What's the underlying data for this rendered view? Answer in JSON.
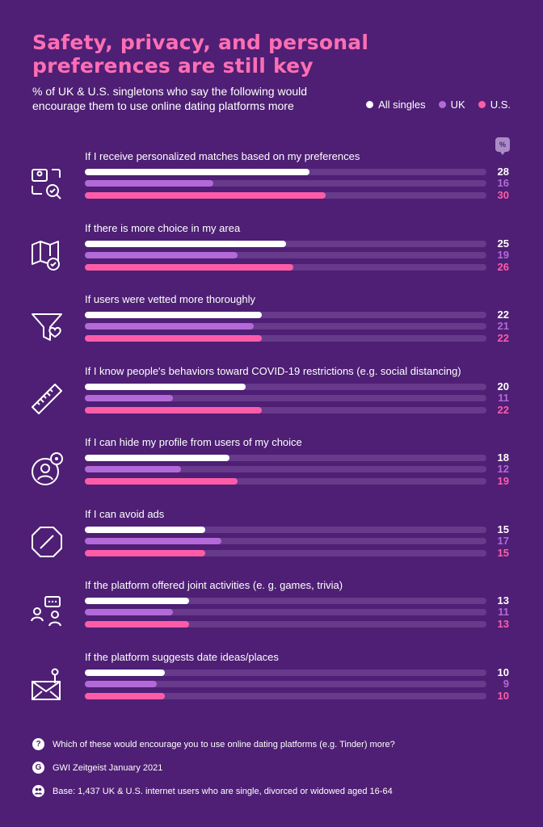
{
  "header": {
    "title": "Safety, privacy, and personal preferences are still key",
    "subtitle": "% of UK & U.S. singletons who say the following would encourage them to use online dating platforms more",
    "unit_badge": "%"
  },
  "colors": {
    "background": "#4e1f74",
    "track": "#673a8c",
    "all_singles": "#ffffff",
    "uk": "#b36ad8",
    "us": "#ff5ca8",
    "title": "#ff6eb4"
  },
  "chart_data": {
    "type": "bar",
    "orientation": "horizontal",
    "xlim": [
      0,
      50
    ],
    "legend_position": "top-right",
    "series": [
      {
        "name": "All singles",
        "color": "#ffffff",
        "values": [
          28,
          25,
          22,
          20,
          18,
          15,
          13,
          10
        ]
      },
      {
        "name": "UK",
        "color": "#b36ad8",
        "values": [
          16,
          19,
          21,
          11,
          12,
          17,
          11,
          9
        ]
      },
      {
        "name": "U.S.",
        "color": "#ff5ca8",
        "values": [
          30,
          26,
          22,
          22,
          19,
          15,
          13,
          10
        ]
      }
    ],
    "categories": [
      "If I receive personalized matches based on my preferences",
      "If there is more choice in my area",
      "If users were vetted more thoroughly",
      "If I know people's behaviors toward COVID-19 restrictions (e.g. social distancing)",
      "If I can hide my profile from users of my choice",
      "If I can avoid ads",
      "If the platform offered joint activities (e. g. games, trivia)",
      "If the platform suggests date ideas/places"
    ],
    "icons": [
      "profile-search-icon",
      "map-check-icon",
      "filter-heart-icon",
      "ruler-icon",
      "profile-eye-icon",
      "no-ads-icon",
      "group-chat-icon",
      "mail-pin-icon"
    ]
  },
  "footer": {
    "question": "Which of these would encourage you to use online dating platforms (e.g. Tinder) more?",
    "source": "GWI Zeitgeist January 2021",
    "base": "Base: 1,437 UK & U.S. internet users who are single, divorced or widowed aged 16-64"
  }
}
